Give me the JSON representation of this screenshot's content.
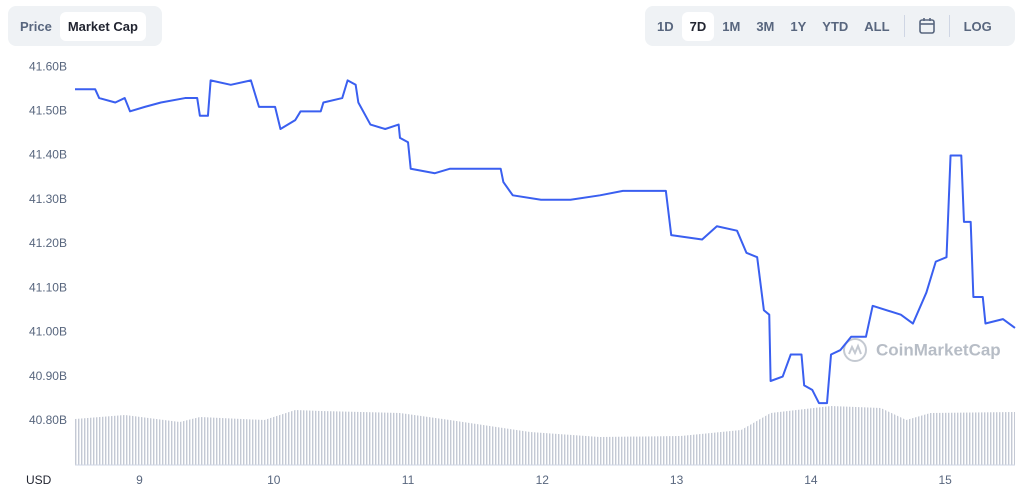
{
  "tabs": [
    "Price",
    "Market Cap"
  ],
  "active_tab": 1,
  "ranges": [
    "1D",
    "7D",
    "1M",
    "3M",
    "1Y",
    "YTD",
    "ALL"
  ],
  "active_range": 1,
  "log": "LOG",
  "chart_data": {
    "type": "line",
    "currency": "USD",
    "watermark": "CoinMarketCap",
    "xlim": [
      8.52,
      15.52
    ],
    "xticks": [
      9,
      10,
      11,
      12,
      13,
      14,
      15
    ],
    "ylim": [
      40.7,
      41.65
    ],
    "yticks": [
      {
        "value": 40.8,
        "label": "40.80B"
      },
      {
        "value": 40.9,
        "label": "40.90B"
      },
      {
        "value": 41.0,
        "label": "41.00B"
      },
      {
        "value": 41.1,
        "label": "41.10B"
      },
      {
        "value": 41.2,
        "label": "41.20B"
      },
      {
        "value": 41.3,
        "label": "41.30B"
      },
      {
        "value": 41.4,
        "label": "41.40B"
      },
      {
        "value": 41.5,
        "label": "41.50B"
      },
      {
        "value": 41.6,
        "label": "41.60B"
      }
    ],
    "series": [
      {
        "name": "Market Cap",
        "color": "#3a5ff0",
        "x": [
          8.52,
          8.67,
          8.7,
          8.82,
          8.89,
          8.93,
          9.04,
          9.16,
          9.34,
          9.43,
          9.45,
          9.51,
          9.53,
          9.68,
          9.83,
          9.89,
          10.01,
          10.05,
          10.16,
          10.2,
          10.35,
          10.37,
          10.51,
          10.55,
          10.61,
          10.63,
          10.72,
          10.83,
          10.93,
          10.94,
          11.0,
          11.02,
          11.2,
          11.31,
          11.69,
          11.71,
          11.78,
          11.99,
          12.21,
          12.43,
          12.6,
          12.92,
          12.96,
          13.19,
          13.3,
          13.45,
          13.52,
          13.6,
          13.65,
          13.69,
          13.7,
          13.79,
          13.85,
          13.93,
          13.95,
          14.01,
          14.06,
          14.12,
          14.15,
          14.22,
          14.3,
          14.41,
          14.46,
          14.67,
          14.76,
          14.86,
          14.93,
          15.01,
          15.04,
          15.12,
          15.14,
          15.19,
          15.21,
          15.28,
          15.3,
          15.43,
          15.52
        ],
        "values": [
          41.55,
          41.55,
          41.53,
          41.52,
          41.53,
          41.5,
          41.51,
          41.52,
          41.53,
          41.53,
          41.49,
          41.49,
          41.57,
          41.56,
          41.57,
          41.51,
          41.51,
          41.46,
          41.48,
          41.5,
          41.5,
          41.52,
          41.53,
          41.57,
          41.56,
          41.52,
          41.47,
          41.46,
          41.47,
          41.44,
          41.43,
          41.37,
          41.36,
          41.37,
          41.37,
          41.34,
          41.31,
          41.3,
          41.3,
          41.31,
          41.32,
          41.32,
          41.22,
          41.21,
          41.24,
          41.23,
          41.18,
          41.17,
          41.05,
          41.04,
          40.89,
          40.9,
          40.95,
          40.95,
          40.88,
          40.87,
          40.84,
          40.84,
          40.95,
          40.96,
          40.99,
          40.99,
          41.06,
          41.04,
          41.02,
          41.09,
          41.16,
          41.17,
          41.4,
          41.4,
          41.25,
          41.25,
          41.08,
          41.08,
          41.02,
          41.03,
          41.01
        ]
      }
    ],
    "volume": {
      "color": "#c4c9d4",
      "y2lim": [
        0,
        100
      ],
      "x": [
        8.52,
        8.89,
        9.3,
        9.45,
        9.93,
        10.16,
        10.35,
        10.94,
        11.31,
        11.91,
        12.43,
        13.03,
        13.48,
        13.7,
        14.15,
        14.52,
        14.71,
        14.89,
        15.52
      ],
      "values": [
        46,
        50,
        43,
        48,
        45,
        55,
        54,
        52,
        45,
        33,
        28,
        29,
        35,
        52,
        59,
        57,
        45,
        52,
        53
      ]
    }
  }
}
